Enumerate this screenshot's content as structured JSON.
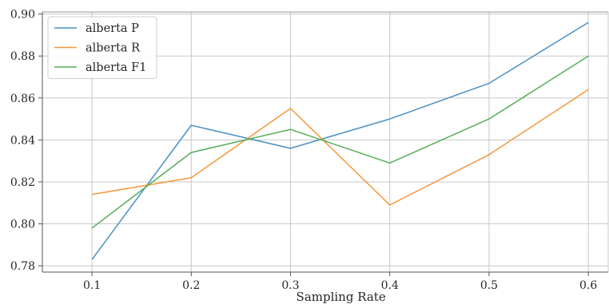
{
  "chart_data": {
    "type": "line",
    "title": "",
    "xlabel": "Sampling Rate",
    "ylabel": "",
    "x": [
      0.1,
      0.2,
      0.3,
      0.4,
      0.5,
      0.6
    ],
    "x_tick_labels": [
      "0.1",
      "0.2",
      "0.3",
      "0.4",
      "0.5",
      "0.6"
    ],
    "y_ticks": [
      0.78,
      0.8,
      0.82,
      0.84,
      0.86,
      0.88,
      0.9
    ],
    "y_tick_labels": [
      "0.78",
      "0.80",
      "0.82",
      "0.84",
      "0.86",
      "0.88",
      "0.90"
    ],
    "xlim": [
      0.05,
      0.62
    ],
    "ylim": [
      0.777,
      0.901
    ],
    "grid": true,
    "legend_position": "top-left",
    "series": [
      {
        "name": "alberta P",
        "color": "#4a90c4",
        "values": [
          0.783,
          0.847,
          0.836,
          0.85,
          0.867,
          0.896
        ]
      },
      {
        "name": "alberta R",
        "color": "#f5973b",
        "values": [
          0.814,
          0.822,
          0.855,
          0.809,
          0.833,
          0.864
        ]
      },
      {
        "name": "alberta F1",
        "color": "#55ad55",
        "values": [
          0.798,
          0.834,
          0.845,
          0.829,
          0.85,
          0.88
        ]
      }
    ]
  }
}
